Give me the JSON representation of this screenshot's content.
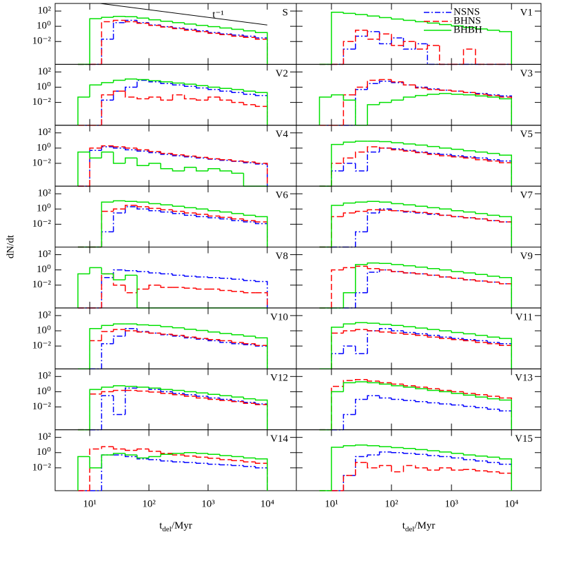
{
  "chart_data": {
    "type": "histogram",
    "xlabel": {
      "main": "t",
      "sub": "del",
      "rest": "/Myr"
    },
    "ylabel": "dN/dt",
    "xlog": true,
    "ylog": true,
    "xlim": [
      2.6,
      31000
    ],
    "ylim": [
      1e-05,
      1000
    ],
    "xticks": [
      {
        "value": 10,
        "label": "10¹"
      },
      {
        "value": 100,
        "label": "10²"
      },
      {
        "value": 1000,
        "label": "10³"
      },
      {
        "value": 10000,
        "label": "10⁴"
      }
    ],
    "yticks": [
      {
        "value": 100,
        "label": "10²"
      },
      {
        "value": 1,
        "label": "10⁰"
      },
      {
        "value": 0.01,
        "label": "10⁻²"
      }
    ],
    "bins": [
      6.31,
      10,
      15.85,
      25.12,
      39.81,
      63.1,
      100,
      158.5,
      251.2,
      398.1,
      631,
      1000,
      1585,
      2512,
      3981,
      6310,
      10000
    ],
    "legend_panel": 1,
    "series": [
      {
        "name": "NSNS",
        "color": "#0000ff",
        "dash": "dash-dot"
      },
      {
        "name": "BHNS",
        "color": "#ff0000",
        "dash": "dashed"
      },
      {
        "name": "BHBH",
        "color": "#00e000",
        "dash": "solid"
      }
    ],
    "reference_line": {
      "panel": 0,
      "label": "t⁻¹",
      "x": [
        15,
        10000
      ],
      "y": [
        1000,
        1.5
      ]
    },
    "panels": [
      {
        "label": "S",
        "values": [
          [
            0,
            0,
            0.02,
            3,
            6,
            3,
            1.5,
            0.9,
            0.6,
            0.4,
            0.25,
            0.15,
            0.1,
            0.07,
            0.05,
            0.03
          ],
          [
            0,
            0,
            4,
            6,
            4,
            2.5,
            1.3,
            0.8,
            0.5,
            0.3,
            0.2,
            0.12,
            0.08,
            0.05,
            0.035,
            0.02
          ],
          [
            0,
            10,
            15,
            20,
            18,
            12,
            7,
            4.5,
            3,
            2,
            1.3,
            0.9,
            0.6,
            0.4,
            0.25,
            0.15
          ]
        ]
      },
      {
        "label": "V1",
        "values": [
          [
            0,
            0,
            0.001,
            0.05,
            0.2,
            0.005,
            0.03,
            0.001,
            0.005,
            0,
            0,
            0,
            0,
            0,
            0,
            0
          ],
          [
            0,
            0,
            0.01,
            0.3,
            0.02,
            0.1,
            0.003,
            0.01,
            0.001,
            0.003,
            0,
            0,
            0.001,
            0,
            0,
            0
          ],
          [
            0,
            70,
            50,
            35,
            22,
            14,
            9,
            6,
            4,
            2.6,
            1.7,
            1.1,
            0.7,
            0.45,
            0.3,
            0.2
          ]
        ]
      },
      {
        "label": "V2",
        "values": [
          [
            0,
            0,
            0.02,
            0.3,
            1,
            8,
            5,
            3,
            2,
            1.3,
            0.8,
            0.5,
            0.3,
            0.2,
            0.12,
            0.08
          ],
          [
            0,
            0,
            0.1,
            0.3,
            0.05,
            0.03,
            0.05,
            0.02,
            0.1,
            0.03,
            0.02,
            0.05,
            0.02,
            0.01,
            0.005,
            0.003
          ],
          [
            0.05,
            2,
            4,
            8,
            12,
            10,
            7,
            5,
            3.5,
            2.5,
            1.6,
            1,
            0.7,
            0.5,
            0.3,
            0.2
          ]
        ]
      },
      {
        "label": "V3",
        "values": [
          [
            0,
            0,
            0,
            0.5,
            3,
            6,
            4,
            2,
            1,
            0.6,
            0.4,
            0.3,
            0.2,
            0.15,
            0.1,
            0.07
          ],
          [
            0,
            0,
            0.1,
            1,
            8,
            10,
            5,
            2,
            0.8,
            0.5,
            0.4,
            0.3,
            0.2,
            0.12,
            0.08,
            0.05
          ],
          [
            0.05,
            0.1,
            0.02,
            0,
            0.005,
            0.01,
            0.02,
            0.05,
            0.08,
            0.12,
            0.15,
            0.12,
            0.1,
            0.07,
            0.05,
            0.03
          ]
        ]
      },
      {
        "label": "V4",
        "values": [
          [
            0,
            0.5,
            1.5,
            1,
            0.6,
            0.4,
            0.25,
            0.15,
            0.1,
            0.07,
            0.05,
            0.035,
            0.025,
            0.018,
            0.012,
            0.008
          ],
          [
            0,
            1,
            2,
            1.5,
            1,
            0.6,
            0.35,
            0.2,
            0.13,
            0.09,
            0.06,
            0.04,
            0.03,
            0.02,
            0.015,
            0.01
          ],
          [
            0.3,
            0.05,
            0.3,
            0.01,
            0.05,
            0.005,
            0.01,
            0.002,
            0.001,
            0.003,
            0.001,
            0.002,
            0.001,
            0.0005,
            0,
            0
          ]
        ]
      },
      {
        "label": "V5",
        "values": [
          [
            0,
            0.001,
            0.01,
            0.001,
            0.3,
            1,
            0.8,
            0.5,
            0.3,
            0.2,
            0.15,
            0.1,
            0.07,
            0.05,
            0.03,
            0.02
          ],
          [
            0,
            0.01,
            0.05,
            0.3,
            1.5,
            1,
            0.6,
            0.4,
            0.25,
            0.15,
            0.1,
            0.07,
            0.05,
            0.03,
            0.02,
            0.012
          ],
          [
            0,
            3,
            6,
            8,
            8,
            7,
            5,
            3.5,
            2.5,
            1.6,
            1,
            0.7,
            0.45,
            0.3,
            0.2,
            0.12
          ]
        ]
      },
      {
        "label": "V6",
        "values": [
          [
            0,
            0,
            0.001,
            0.3,
            2,
            1,
            0.6,
            0.4,
            0.25,
            0.15,
            0.1,
            0.07,
            0.05,
            0.03,
            0.02,
            0.012
          ],
          [
            0,
            0,
            0.5,
            1,
            3,
            2,
            1.2,
            0.8,
            0.5,
            0.3,
            0.2,
            0.12,
            0.08,
            0.05,
            0.03,
            0.02
          ],
          [
            0,
            0,
            8,
            12,
            10,
            8,
            5,
            3.5,
            2.3,
            1.5,
            1,
            0.6,
            0.4,
            0.25,
            0.15,
            0.1
          ]
        ]
      },
      {
        "label": "V7",
        "values": [
          [
            0,
            0,
            0,
            0.001,
            0.3,
            1,
            0.6,
            0.4,
            0.3,
            0.2,
            0.15,
            0.1,
            0.07,
            0.05,
            0.03,
            0.02
          ],
          [
            0,
            0.1,
            0.3,
            0.5,
            0.8,
            0.7,
            0.6,
            0.5,
            0.35,
            0.25,
            0.15,
            0.1,
            0.07,
            0.05,
            0.03,
            0.02
          ],
          [
            0,
            3,
            6,
            8,
            10,
            8,
            5,
            3.5,
            2.3,
            1.5,
            1,
            0.6,
            0.4,
            0.25,
            0.15,
            0.1
          ]
        ]
      },
      {
        "label": "V8",
        "values": [
          [
            0,
            0,
            0.1,
            1,
            0.8,
            0.6,
            0.4,
            0.3,
            0.2,
            0.15,
            0.12,
            0.1,
            0.08,
            0.06,
            0.04,
            0.03
          ],
          [
            0,
            0,
            0.3,
            0.01,
            0.001,
            0.003,
            0.01,
            0.005,
            0.005,
            0.004,
            0.003,
            0.003,
            0.002,
            0.0015,
            0.001,
            0.001
          ],
          [
            0.3,
            2,
            0.3,
            0.05,
            0.2,
            0,
            0,
            0,
            0,
            0,
            0,
            0,
            0,
            0,
            0,
            0
          ]
        ]
      },
      {
        "label": "V9",
        "values": [
          [
            0,
            0,
            0,
            0.001,
            0.5,
            1,
            0.6,
            0.4,
            0.3,
            0.2,
            0.12,
            0.08,
            0.05,
            0.035,
            0.025,
            0.015
          ],
          [
            0,
            1,
            2,
            3,
            1.5,
            1,
            0.6,
            0.4,
            0.3,
            0.2,
            0.12,
            0.08,
            0.05,
            0.035,
            0.025,
            0.015
          ],
          [
            0,
            0,
            0.001,
            5,
            8,
            7,
            5,
            3.5,
            2.3,
            1.5,
            1,
            0.6,
            0.4,
            0.25,
            0.15,
            0.1
          ]
        ]
      },
      {
        "label": "V10",
        "values": [
          [
            0,
            0,
            0.02,
            0.2,
            2,
            0.8,
            0.5,
            0.3,
            0.2,
            0.12,
            0.08,
            0.05,
            0.03,
            0.02,
            0.015,
            0.01
          ],
          [
            0,
            0.05,
            0.8,
            1.5,
            1,
            0.7,
            0.5,
            0.35,
            0.25,
            0.15,
            0.1,
            0.07,
            0.05,
            0.03,
            0.02,
            0.012
          ],
          [
            0,
            2,
            5,
            8,
            8,
            6,
            5,
            3.5,
            2.5,
            1.6,
            1.1,
            0.7,
            0.45,
            0.3,
            0.2,
            0.12
          ]
        ]
      },
      {
        "label": "V11",
        "values": [
          [
            0,
            0.001,
            0.01,
            0.001,
            1,
            2,
            1,
            0.6,
            0.4,
            0.25,
            0.15,
            0.1,
            0.07,
            0.05,
            0.03,
            0.02
          ],
          [
            0,
            0.5,
            1,
            1.5,
            1,
            0.7,
            0.5,
            0.35,
            0.25,
            0.15,
            0.1,
            0.07,
            0.05,
            0.03,
            0.02,
            0.012
          ],
          [
            0,
            3,
            8,
            12,
            10,
            7,
            5,
            3.5,
            2.3,
            1.5,
            1,
            0.6,
            0.4,
            0.25,
            0.15,
            0.1
          ]
        ]
      },
      {
        "label": "V12",
        "values": [
          [
            0,
            0,
            0.3,
            0.001,
            3,
            4,
            2,
            1,
            0.6,
            0.4,
            0.25,
            0.15,
            0.1,
            0.06,
            0.04,
            0.025
          ],
          [
            0,
            0.5,
            1,
            1.5,
            1.5,
            1.2,
            0.9,
            0.6,
            0.4,
            0.25,
            0.15,
            0.1,
            0.07,
            0.05,
            0.03,
            0.02
          ],
          [
            0,
            2,
            4,
            6,
            5,
            4,
            3,
            2,
            1.5,
            1,
            0.7,
            0.45,
            0.3,
            0.2,
            0.12,
            0.08
          ]
        ]
      },
      {
        "label": "V13",
        "values": [
          [
            0,
            0,
            0.001,
            0.1,
            0.3,
            0.15,
            0.1,
            0.07,
            0.05,
            0.035,
            0.025,
            0.018,
            0.012,
            0.008,
            0.005,
            0.003
          ],
          [
            0,
            5,
            30,
            40,
            25,
            15,
            10,
            6,
            4,
            2.5,
            1.5,
            1,
            0.6,
            0.4,
            0.25,
            0.15
          ],
          [
            0,
            1,
            15,
            20,
            15,
            10,
            6,
            4,
            2.5,
            1.5,
            1,
            0.6,
            0.35,
            0.2,
            0.12,
            0.08
          ]
        ]
      },
      {
        "label": "V14",
        "values": [
          [
            0,
            0,
            0.5,
            0.5,
            0.3,
            0.15,
            0.12,
            0.08,
            0.06,
            0.05,
            0.04,
            0.03,
            0.025,
            0.02,
            0.015,
            0.01
          ],
          [
            0,
            3,
            6,
            3,
            2,
            3,
            1.5,
            0.8,
            0.5,
            0.35,
            0.25,
            0.18,
            0.12,
            0.09,
            0.06,
            0.04
          ],
          [
            0.3,
            0.01,
            0.5,
            0.8,
            0.5,
            0.2,
            0.3,
            0.6,
            0.8,
            1,
            0.8,
            0.6,
            0.4,
            0.3,
            0.2,
            0.15
          ]
        ]
      },
      {
        "label": "V15",
        "values": [
          [
            0,
            0,
            0.001,
            0.3,
            0.5,
            1.2,
            1,
            0.8,
            0.6,
            0.4,
            0.3,
            0.2,
            0.12,
            0.08,
            0.05,
            0.03
          ],
          [
            0,
            0,
            0.001,
            0.05,
            0.01,
            0.02,
            0.003,
            0.02,
            0.01,
            0.005,
            0.01,
            0.005,
            0.006,
            0.004,
            0.003,
            0.002
          ],
          [
            0,
            5,
            8,
            10,
            8,
            6,
            4.5,
            3.5,
            2.5,
            1.8,
            1.2,
            0.8,
            0.5,
            0.35,
            0.25,
            0.15
          ]
        ]
      }
    ]
  }
}
